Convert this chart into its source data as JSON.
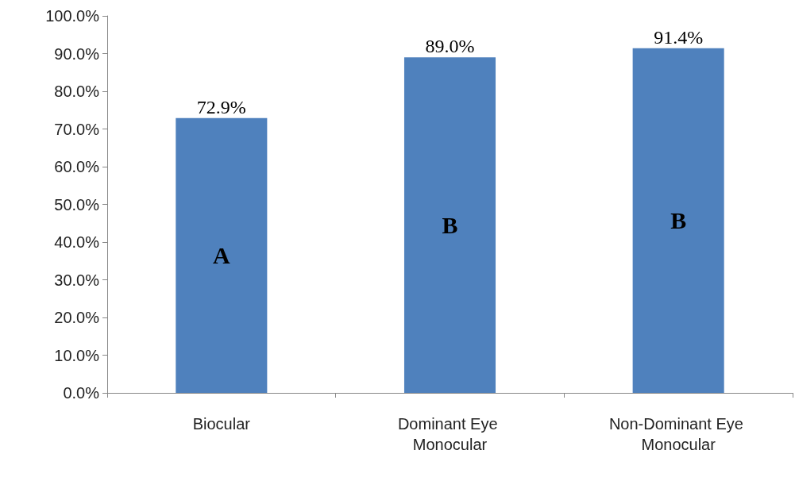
{
  "chart_data": {
    "type": "bar",
    "categories": [
      "Biocular",
      "Dominant Eye Monocular",
      "Non-Dominant Eye Monocular"
    ],
    "values": [
      72.9,
      89.0,
      91.4
    ],
    "color": "#4f81bd",
    "value_labels": [
      "72.9%",
      "89.0%",
      "91.4%"
    ],
    "ylim": [
      0,
      100
    ],
    "yticks": [
      {
        "value": 0,
        "label": "0.0%"
      },
      {
        "value": 10,
        "label": "10.0%"
      },
      {
        "value": 20,
        "label": "20.0%"
      },
      {
        "value": 30,
        "label": "30.0%"
      },
      {
        "value": 40,
        "label": "40.0%"
      },
      {
        "value": 50,
        "label": "50.0%"
      },
      {
        "value": 60,
        "label": "60.0%"
      },
      {
        "value": 70,
        "label": "70.0%"
      },
      {
        "value": 80,
        "label": "80.0%"
      },
      {
        "value": 90,
        "label": "90.0%"
      },
      {
        "value": 100,
        "label": "100.0%"
      }
    ],
    "annotations": [
      "A",
      "B",
      "B"
    ],
    "grid": false
  }
}
